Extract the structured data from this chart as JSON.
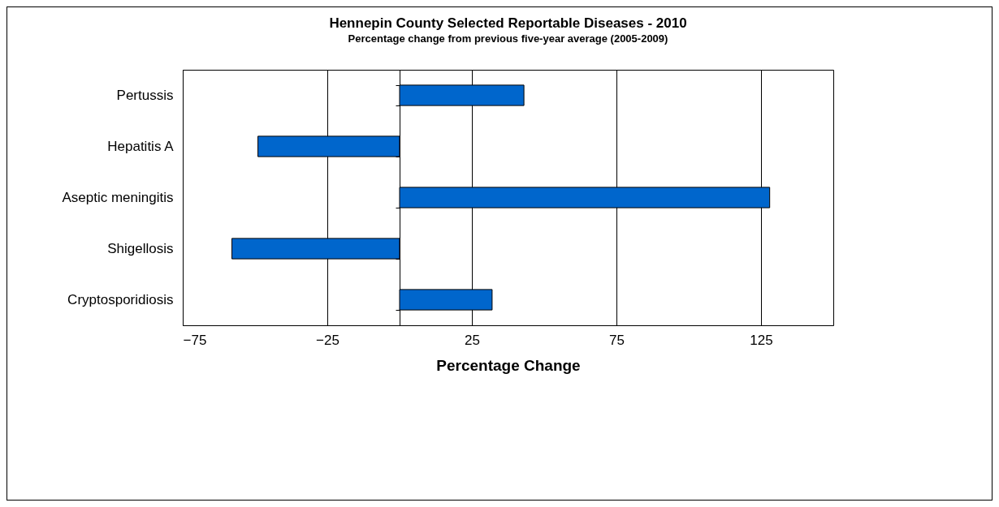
{
  "chart_data": {
    "type": "bar",
    "orientation": "horizontal",
    "title": "Hennepin County Selected Reportable Diseases - 2010",
    "subtitle": "Percentage change from previous five-year average (2005-2009)",
    "xlabel": "Percentage Change",
    "categories": [
      "Pertussis",
      "Hepatitis A",
      "Aseptic meningitis",
      "Shigellosis",
      "Cryptosporidiosis"
    ],
    "values": [
      43,
      -49,
      128,
      -58,
      32
    ],
    "color": "#0066cc",
    "xlim": [
      -75,
      150
    ],
    "xticks": [
      -75,
      -25,
      25,
      75,
      125
    ],
    "grid": "x"
  }
}
